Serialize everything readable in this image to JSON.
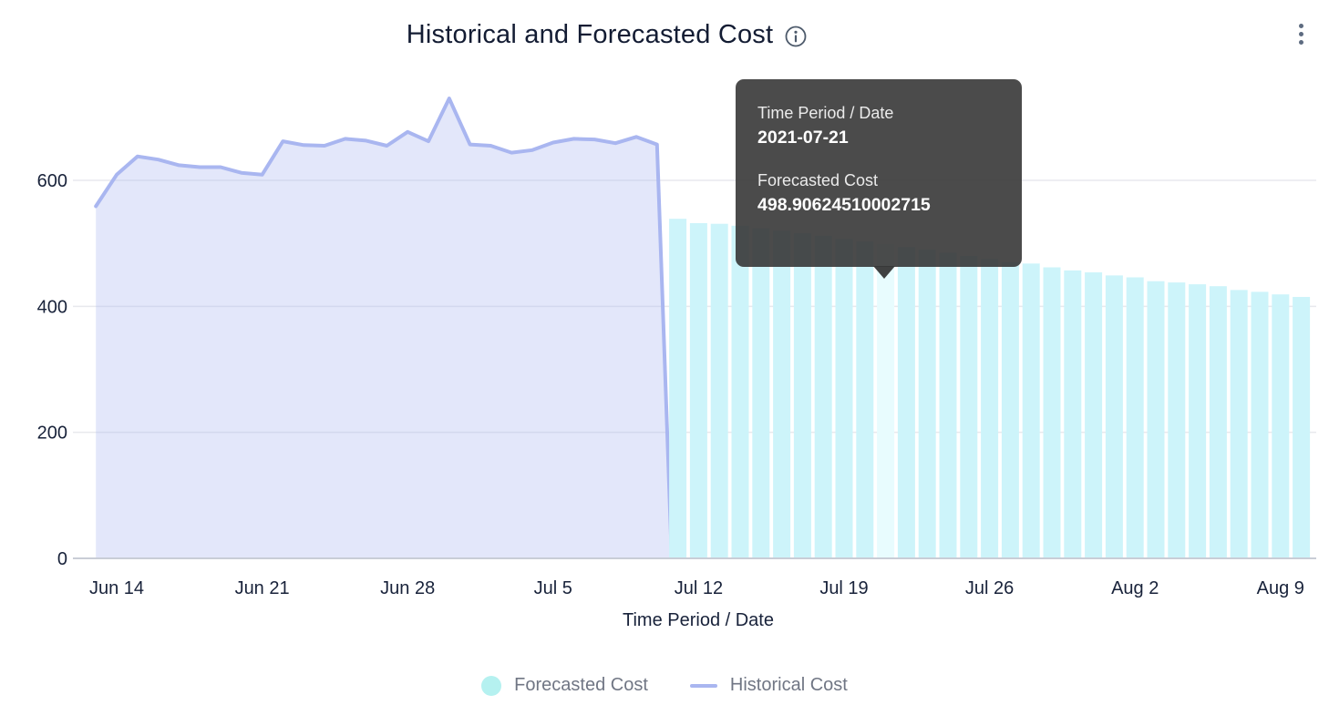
{
  "header": {
    "title": "Historical and Forecasted Cost"
  },
  "icons": {
    "info": "info-icon",
    "menu": "kebab-menu-icon"
  },
  "chart_data": {
    "type": "mixed",
    "title": "Historical and Forecasted Cost",
    "xlabel": "Time Period / Date",
    "ylabel": "",
    "ylim": [
      0,
      760
    ],
    "grid": true,
    "legend_position": "bottom",
    "y_ticks": [
      0,
      200,
      400,
      600
    ],
    "x_ticks": [
      {
        "date": "2021-06-14",
        "label": "Jun 14"
      },
      {
        "date": "2021-06-21",
        "label": "Jun 21"
      },
      {
        "date": "2021-06-28",
        "label": "Jun 28"
      },
      {
        "date": "2021-07-05",
        "label": "Jul 5"
      },
      {
        "date": "2021-07-12",
        "label": "Jul 12"
      },
      {
        "date": "2021-07-19",
        "label": "Jul 19"
      },
      {
        "date": "2021-07-26",
        "label": "Jul 26"
      },
      {
        "date": "2021-08-02",
        "label": "Aug 2"
      },
      {
        "date": "2021-08-09",
        "label": "Aug 9"
      }
    ],
    "series": [
      {
        "name": "Historical Cost",
        "type": "area",
        "line_color": "#a9b6f0",
        "fill_color": "rgba(169,182,240,0.33)",
        "dates": [
          "2021-06-13",
          "2021-06-14",
          "2021-06-15",
          "2021-06-16",
          "2021-06-17",
          "2021-06-18",
          "2021-06-19",
          "2021-06-20",
          "2021-06-21",
          "2021-06-22",
          "2021-06-23",
          "2021-06-24",
          "2021-06-25",
          "2021-06-26",
          "2021-06-27",
          "2021-06-28",
          "2021-06-29",
          "2021-06-30",
          "2021-07-01",
          "2021-07-02",
          "2021-07-03",
          "2021-07-04",
          "2021-07-05",
          "2021-07-06",
          "2021-07-07",
          "2021-07-08",
          "2021-07-09",
          "2021-07-10"
        ],
        "values": [
          559,
          609,
          638,
          633,
          624,
          621,
          621,
          612,
          609,
          662,
          656,
          655,
          666,
          663,
          655,
          677,
          662,
          730,
          657,
          655,
          644,
          648,
          660,
          666,
          665,
          659,
          669,
          657
        ],
        "terminal_drop": true
      },
      {
        "name": "Forecasted Cost",
        "type": "bar",
        "color": "#cdf4fa",
        "hover_color": "#e8fcfe",
        "hover_date": "2021-07-21",
        "dates": [
          "2021-07-11",
          "2021-07-12",
          "2021-07-13",
          "2021-07-14",
          "2021-07-15",
          "2021-07-16",
          "2021-07-17",
          "2021-07-18",
          "2021-07-19",
          "2021-07-20",
          "2021-07-21",
          "2021-07-22",
          "2021-07-23",
          "2021-07-24",
          "2021-07-25",
          "2021-07-26",
          "2021-07-27",
          "2021-07-28",
          "2021-07-29",
          "2021-07-30",
          "2021-07-31",
          "2021-08-01",
          "2021-08-02",
          "2021-08-03",
          "2021-08-04",
          "2021-08-05",
          "2021-08-06",
          "2021-08-07",
          "2021-08-08",
          "2021-08-09",
          "2021-08-10"
        ],
        "values": [
          539,
          532,
          531,
          528,
          524,
          520,
          516,
          512,
          507,
          503,
          498.90624510002715,
          494,
          490,
          485,
          480,
          475,
          470,
          468,
          462,
          457,
          454,
          449,
          446,
          440,
          438,
          435,
          432,
          426,
          423,
          419,
          415
        ]
      }
    ]
  },
  "tooltip": {
    "row1_label": "Time Period / Date",
    "row1_value": "2021-07-21",
    "row2_label": "Forecasted Cost",
    "row2_value": "498.90624510002715"
  },
  "legend": {
    "items": [
      {
        "label": "Forecasted Cost",
        "swatch": "circle",
        "color": "#b5f1f0"
      },
      {
        "label": "Historical Cost",
        "swatch": "line",
        "color": "#a9b6f0"
      }
    ]
  },
  "colors": {
    "gridline": "#e8e9ed",
    "axis_line": "#c9cdd6",
    "text_dark": "#18223a",
    "text_gray": "#707684",
    "tooltip_bg": "rgba(55,55,55,0.9)"
  }
}
